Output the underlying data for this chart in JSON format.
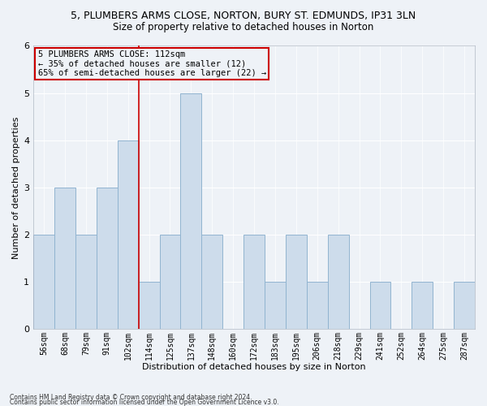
{
  "title_line1": "5, PLUMBERS ARMS CLOSE, NORTON, BURY ST. EDMUNDS, IP31 3LN",
  "title_line2": "Size of property relative to detached houses in Norton",
  "xlabel": "Distribution of detached houses by size in Norton",
  "ylabel": "Number of detached properties",
  "footnote1": "Contains HM Land Registry data © Crown copyright and database right 2024.",
  "footnote2": "Contains public sector information licensed under the Open Government Licence v3.0.",
  "categories": [
    "56sqm",
    "68sqm",
    "79sqm",
    "91sqm",
    "102sqm",
    "114sqm",
    "125sqm",
    "137sqm",
    "148sqm",
    "160sqm",
    "172sqm",
    "183sqm",
    "195sqm",
    "206sqm",
    "218sqm",
    "229sqm",
    "241sqm",
    "252sqm",
    "264sqm",
    "275sqm",
    "287sqm"
  ],
  "values": [
    2,
    3,
    2,
    3,
    4,
    1,
    2,
    5,
    2,
    0,
    2,
    1,
    2,
    1,
    2,
    0,
    1,
    0,
    1,
    0,
    1
  ],
  "bar_color": "#cddceb",
  "bar_edgecolor": "#91b4d0",
  "highlight_index": 4,
  "highlight_line_color": "#cc0000",
  "annotation_text": "5 PLUMBERS ARMS CLOSE: 112sqm\n← 35% of detached houses are smaller (12)\n65% of semi-detached houses are larger (22) →",
  "annotation_box_color": "#cc0000",
  "ylim": [
    0,
    6
  ],
  "yticks": [
    0,
    1,
    2,
    3,
    4,
    5,
    6
  ],
  "background_color": "#eef2f7",
  "grid_color": "#ffffff",
  "title_fontsize": 9,
  "subtitle_fontsize": 8.5,
  "axis_label_fontsize": 8,
  "tick_fontsize": 7,
  "annot_fontsize": 7.5
}
